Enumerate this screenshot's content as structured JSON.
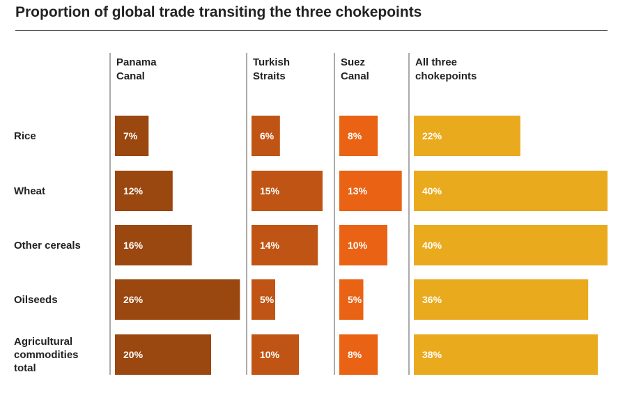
{
  "title": "Proportion of global trade transiting the three chokepoints",
  "chart_data": {
    "type": "bar",
    "layout": "small-multiples horizontal bars",
    "unit": "%",
    "categories": [
      "Rice",
      "Wheat",
      "Other cereals",
      "Oilseeds",
      "Agricultural commodities total"
    ],
    "category_lines": [
      [
        "Rice"
      ],
      [
        "Wheat"
      ],
      [
        "Other cereals"
      ],
      [
        "Oilseeds"
      ],
      [
        "Agricultural",
        "commodities",
        "total"
      ]
    ],
    "series": [
      {
        "name": "Panama Canal",
        "header_lines": [
          "Panama",
          "Canal"
        ],
        "color": "#9a4710",
        "values": [
          7,
          12,
          16,
          26,
          20
        ]
      },
      {
        "name": "Turkish Straits",
        "header_lines": [
          "Turkish",
          "Straits"
        ],
        "color": "#c05414",
        "values": [
          6,
          15,
          14,
          5,
          10
        ]
      },
      {
        "name": "Suez Canal",
        "header_lines": [
          "Suez",
          "Canal"
        ],
        "color": "#ea6214",
        "values": [
          8,
          13,
          10,
          5,
          8
        ]
      },
      {
        "name": "All three chokepoints",
        "header_lines": [
          "All three",
          "chokepoints"
        ],
        "color": "#eaaa1e",
        "values": [
          22,
          40,
          40,
          36,
          38
        ]
      }
    ],
    "label_color": "#ffffff",
    "grid": false,
    "legend": "none"
  }
}
